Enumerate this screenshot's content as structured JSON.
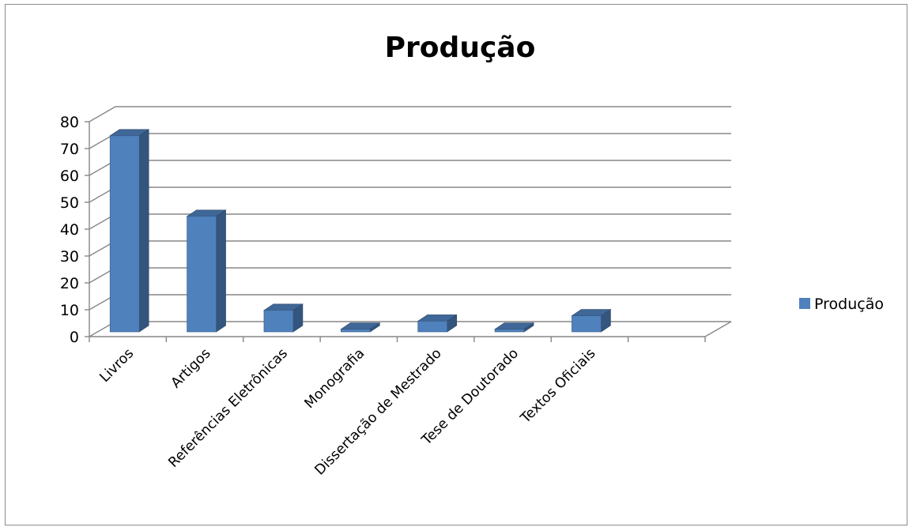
{
  "chart_data": {
    "type": "bar",
    "title": "Produção",
    "categories": [
      "Livros",
      "Artigos",
      "Referências Eletrônicas",
      "Monografia",
      "Dissertação de Mestrado",
      "Tese de Doutorado",
      "Textos Oficiais"
    ],
    "series": [
      {
        "name": "Produção",
        "values": [
          73,
          43,
          8,
          1,
          4,
          1,
          6
        ],
        "color": "#4f81bd"
      }
    ],
    "ylim": [
      0,
      80
    ],
    "yticks": [
      0,
      10,
      20,
      30,
      40,
      50,
      60,
      70,
      80
    ],
    "grid": true,
    "legend_position": "right",
    "style": "3d-column"
  }
}
